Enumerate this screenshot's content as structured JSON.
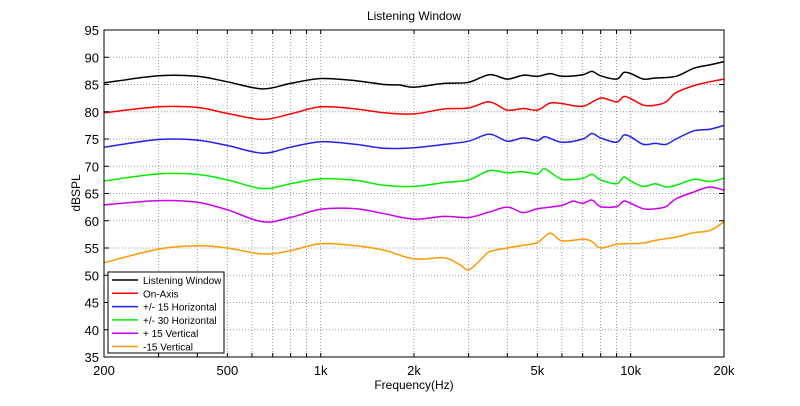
{
  "chart_data": {
    "type": "line",
    "title": "Listening Window",
    "xlabel": "Frequency(Hz)",
    "ylabel": "dBSPL",
    "xscale": "log",
    "xlim": [
      200,
      20000
    ],
    "ylim": [
      35,
      95
    ],
    "grid": true,
    "legend_position": "bottom-left",
    "x_ticks": [
      {
        "value": 200,
        "label": "200"
      },
      {
        "value": 500,
        "label": "500"
      },
      {
        "value": 1000,
        "label": "1k"
      },
      {
        "value": 2000,
        "label": "2k"
      },
      {
        "value": 5000,
        "label": "5k"
      },
      {
        "value": 10000,
        "label": "10k"
      },
      {
        "value": 20000,
        "label": "20k"
      }
    ],
    "y_ticks": [
      {
        "value": 95,
        "label": "95"
      },
      {
        "value": 90,
        "label": "90"
      },
      {
        "value": 85,
        "label": "85"
      },
      {
        "value": 80,
        "label": "80"
      },
      {
        "value": 75,
        "label": "75"
      },
      {
        "value": 70,
        "label": "70"
      },
      {
        "value": 65,
        "label": "65"
      },
      {
        "value": 60,
        "label": "60"
      },
      {
        "value": 55,
        "label": "55"
      },
      {
        "value": 50,
        "label": "50"
      },
      {
        "value": 45,
        "label": "45"
      },
      {
        "value": 40,
        "label": "40"
      },
      {
        "value": 35,
        "label": "35"
      }
    ],
    "series": [
      {
        "name": "Listening Window",
        "color": "#000000",
        "x": [
          200,
          300,
          400,
          500,
          650,
          800,
          1000,
          1300,
          1600,
          1800,
          2000,
          2500,
          3000,
          3500,
          4000,
          4500,
          5000,
          5500,
          6000,
          7000,
          7500,
          8000,
          9000,
          9500,
          10000,
          11000,
          12000,
          14000,
          16000,
          18000,
          20000
        ],
        "y": [
          85.3,
          86.6,
          86.5,
          85.5,
          84.2,
          85.2,
          86.1,
          85.7,
          85.0,
          84.9,
          84.5,
          85.2,
          85.4,
          86.8,
          86.0,
          86.7,
          86.5,
          87.0,
          86.5,
          86.8,
          87.4,
          86.6,
          86.0,
          87.2,
          87.0,
          86.0,
          86.2,
          86.5,
          88.0,
          88.6,
          89.2
        ]
      },
      {
        "name": "On-Axis",
        "color": "#ff0000",
        "x": [
          200,
          300,
          400,
          500,
          650,
          800,
          1000,
          1300,
          1600,
          2000,
          2500,
          3000,
          3500,
          4000,
          4500,
          5000,
          5500,
          6000,
          7000,
          8000,
          9000,
          9500,
          10000,
          11000,
          12000,
          13000,
          14000,
          16000,
          18000,
          20000
        ],
        "y": [
          79.8,
          80.9,
          80.8,
          79.7,
          78.6,
          79.6,
          80.9,
          80.5,
          79.8,
          79.6,
          80.5,
          80.7,
          81.8,
          80.3,
          80.6,
          80.3,
          81.6,
          81.5,
          81.0,
          82.5,
          81.8,
          82.8,
          82.4,
          81.2,
          81.2,
          81.8,
          83.5,
          84.8,
          85.5,
          86.0
        ]
      },
      {
        "name": "+/- 15 Horizontal",
        "color": "#2222ee",
        "x": [
          200,
          300,
          400,
          500,
          650,
          800,
          1000,
          1300,
          1600,
          2000,
          2500,
          3000,
          3500,
          4000,
          4500,
          5000,
          5300,
          6000,
          7000,
          7500,
          8000,
          9000,
          9500,
          10000,
          11000,
          12000,
          13000,
          14000,
          16000,
          18000,
          20000
        ],
        "y": [
          73.5,
          74.9,
          74.8,
          73.8,
          72.4,
          73.5,
          74.5,
          74.0,
          73.3,
          73.4,
          74.0,
          74.6,
          75.9,
          74.6,
          75.2,
          74.7,
          75.4,
          74.4,
          75.0,
          76.0,
          75.2,
          74.4,
          75.7,
          75.4,
          74.0,
          74.2,
          74.0,
          75.0,
          76.5,
          76.8,
          77.5
        ]
      },
      {
        "name": "+/- 30 Horizontal",
        "color": "#00ee00",
        "x": [
          200,
          300,
          400,
          500,
          650,
          800,
          1000,
          1300,
          1600,
          2000,
          2500,
          3000,
          3500,
          4000,
          4500,
          5000,
          5300,
          6000,
          7000,
          7500,
          8000,
          9000,
          9500,
          10000,
          11000,
          12000,
          13000,
          14000,
          16000,
          18000,
          20000
        ],
        "y": [
          67.3,
          68.6,
          68.5,
          67.5,
          65.9,
          66.8,
          67.7,
          67.4,
          66.5,
          66.3,
          67.0,
          67.5,
          69.2,
          68.8,
          69.0,
          68.6,
          69.5,
          67.6,
          67.8,
          68.5,
          67.5,
          66.8,
          68.0,
          67.3,
          66.3,
          66.8,
          66.2,
          66.5,
          67.6,
          67.2,
          67.8
        ]
      },
      {
        "name": "+ 15 Vertical",
        "color": "#cc00ee",
        "x": [
          200,
          300,
          400,
          500,
          650,
          800,
          1000,
          1300,
          1600,
          2000,
          2500,
          3000,
          3500,
          4000,
          4500,
          5000,
          6000,
          6500,
          7000,
          7500,
          8000,
          9000,
          9500,
          10000,
          11000,
          12000,
          13000,
          14000,
          16000,
          18000,
          20000
        ],
        "y": [
          62.9,
          63.7,
          63.4,
          62.0,
          59.8,
          60.6,
          62.1,
          62.2,
          61.3,
          60.3,
          60.8,
          60.6,
          61.6,
          62.5,
          61.5,
          62.2,
          62.8,
          63.6,
          63.2,
          63.8,
          62.6,
          62.6,
          63.6,
          63.2,
          62.2,
          62.2,
          62.6,
          64.0,
          65.3,
          66.2,
          65.6
        ]
      },
      {
        "name": "-15 Vertical",
        "color": "#ff9900",
        "x": [
          200,
          300,
          400,
          500,
          650,
          800,
          1000,
          1300,
          1600,
          2000,
          2500,
          2800,
          3000,
          3300,
          3500,
          4000,
          4500,
          5000,
          5500,
          6000,
          7000,
          7500,
          8000,
          9000,
          10000,
          11000,
          12000,
          14000,
          16000,
          18000,
          20000
        ],
        "y": [
          52.3,
          54.8,
          55.4,
          55.0,
          53.9,
          54.5,
          55.8,
          55.4,
          54.6,
          53.0,
          53.2,
          52.0,
          51.0,
          53.0,
          54.3,
          55.0,
          55.5,
          56.0,
          57.7,
          56.3,
          56.6,
          56.2,
          55.0,
          55.7,
          55.8,
          55.9,
          56.4,
          57.0,
          57.8,
          58.2,
          59.8
        ]
      }
    ]
  }
}
